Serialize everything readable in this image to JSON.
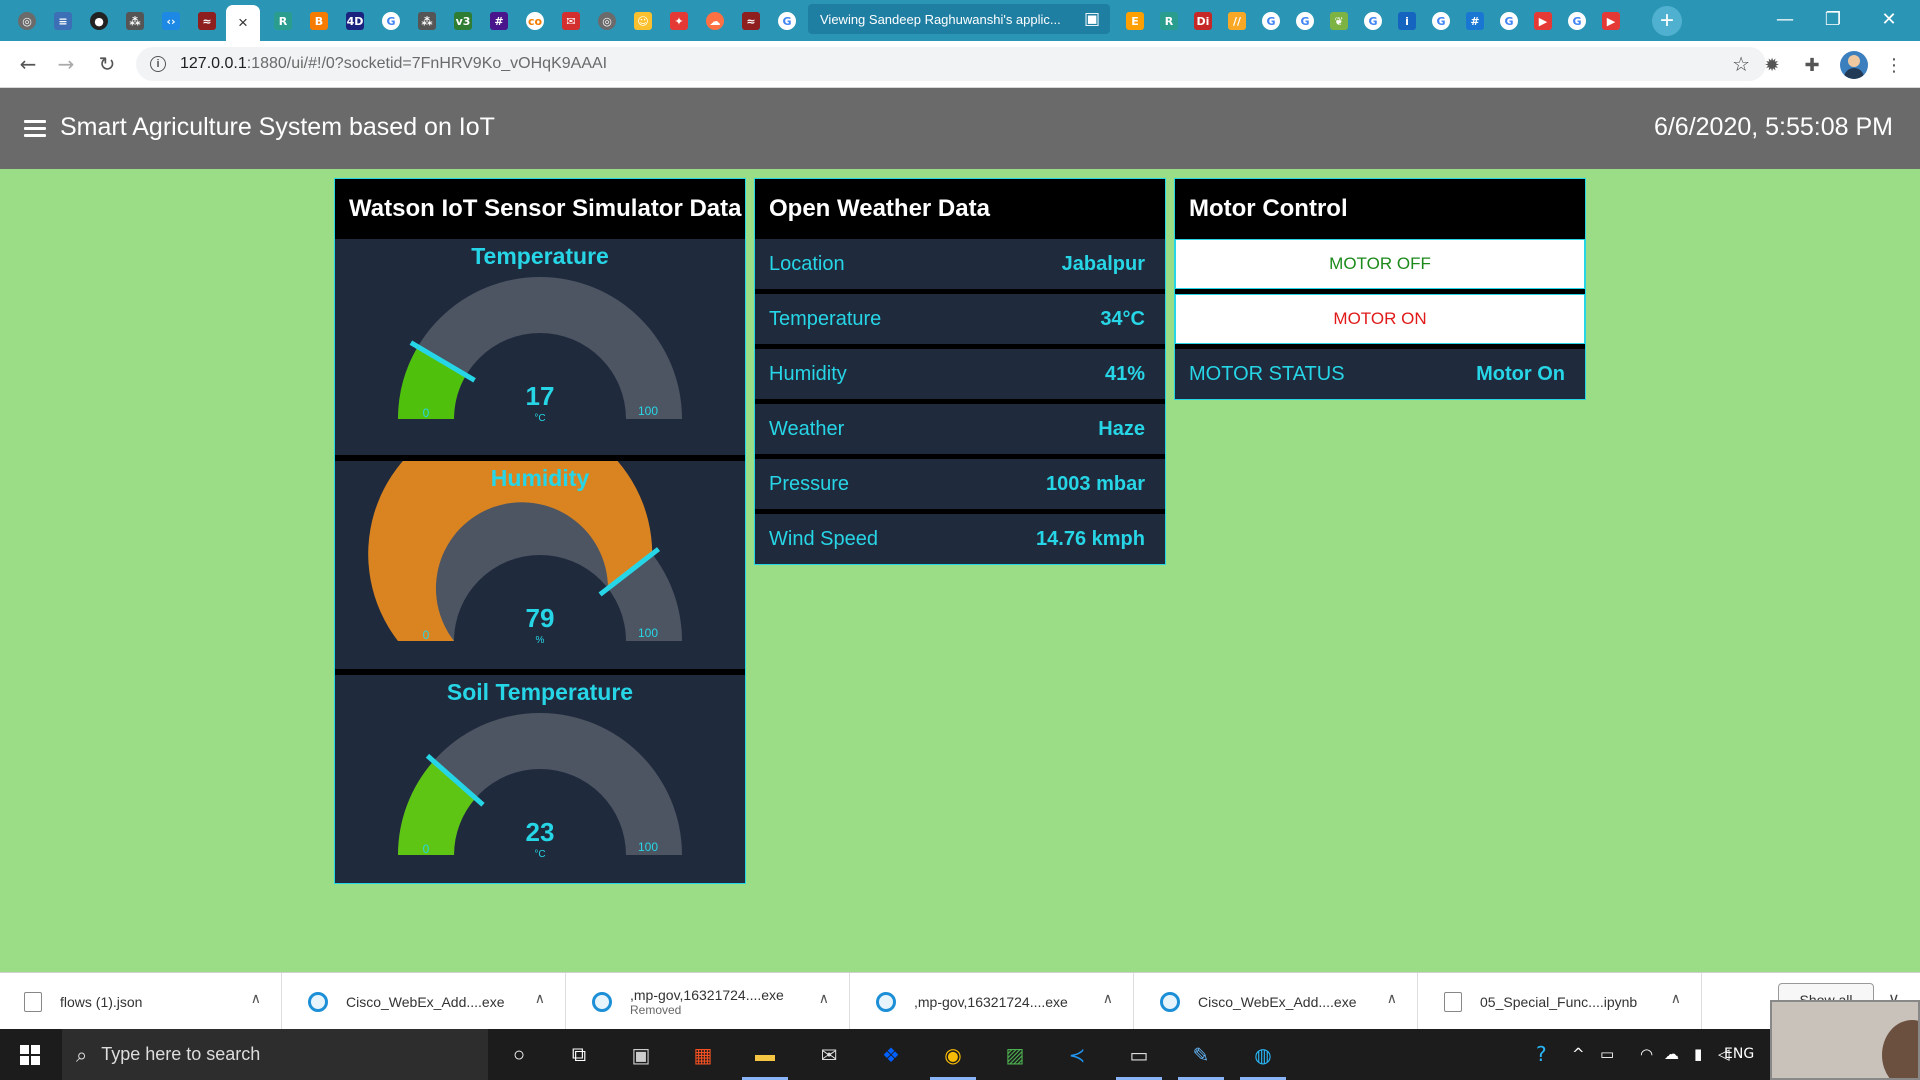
{
  "browser": {
    "active_tab_close": "×",
    "viewing_tab_label": "Viewing Sandeep Raghuwanshi's applic...",
    "new_tab": "+",
    "window_minimize": "—",
    "window_restore": "❐",
    "window_close": "✕",
    "url_host": "127.0.0.1",
    "url_rest": ":1880/ui/#!/0?socketid=7FnHRV9Ko_vOHqK9AAAI"
  },
  "dashboard": {
    "title": "Smart Agriculture System based on IoT",
    "datetime": "6/6/2020, 5:55:08 PM"
  },
  "sensor_card": {
    "title": "Watson IoT Sensor Simulator Data",
    "gauges": [
      {
        "label": "Temperature",
        "value": 17,
        "unit": "°C",
        "min": 0,
        "max": 100,
        "color": "#4fc10d"
      },
      {
        "label": "Humidity",
        "value": 79,
        "unit": "%",
        "min": 0,
        "max": 100,
        "color": "#d98421"
      },
      {
        "label": "Soil Temperature",
        "value": 23,
        "unit": "°C",
        "min": 0,
        "max": 100,
        "color": "#5ec514"
      }
    ]
  },
  "weather_card": {
    "title": "Open Weather Data",
    "rows": [
      {
        "label": "Location",
        "value": "Jabalpur"
      },
      {
        "label": "Temperature",
        "value": "34°C"
      },
      {
        "label": "Humidity",
        "value": "41%"
      },
      {
        "label": "Weather",
        "value": "Haze"
      },
      {
        "label": "Pressure",
        "value": "1003 mbar"
      },
      {
        "label": "Wind Speed",
        "value": "14.76 kmph"
      }
    ]
  },
  "motor_card": {
    "title": "Motor Control",
    "off_label": "MOTOR OFF",
    "on_label": "MOTOR ON",
    "status_label": "MOTOR STATUS",
    "status_value": "Motor On"
  },
  "downloads": {
    "items": [
      {
        "name": "flows (1).json",
        "sub": "",
        "icon": "file"
      },
      {
        "name": "Cisco_WebEx_Add....exe",
        "sub": "",
        "icon": "globe"
      },
      {
        "name": ",mp-gov,16321724....exe",
        "sub": "Removed",
        "icon": "globe"
      },
      {
        "name": ",mp-gov,16321724....exe",
        "sub": "",
        "icon": "globe"
      },
      {
        "name": "Cisco_WebEx_Add....exe",
        "sub": "",
        "icon": "globe"
      },
      {
        "name": "05_Special_Func....ipynb",
        "sub": "",
        "icon": "file"
      }
    ],
    "show_all": "Show all"
  },
  "taskbar": {
    "search_placeholder": "Type here to search",
    "language": "ENG"
  },
  "colors": {
    "page_bg": "#9bdc87",
    "header_bg": "#6a6a6a",
    "accent": "#27d6e6",
    "card_bg": "#1f2a3d",
    "gauge_track": "#4d5562"
  }
}
